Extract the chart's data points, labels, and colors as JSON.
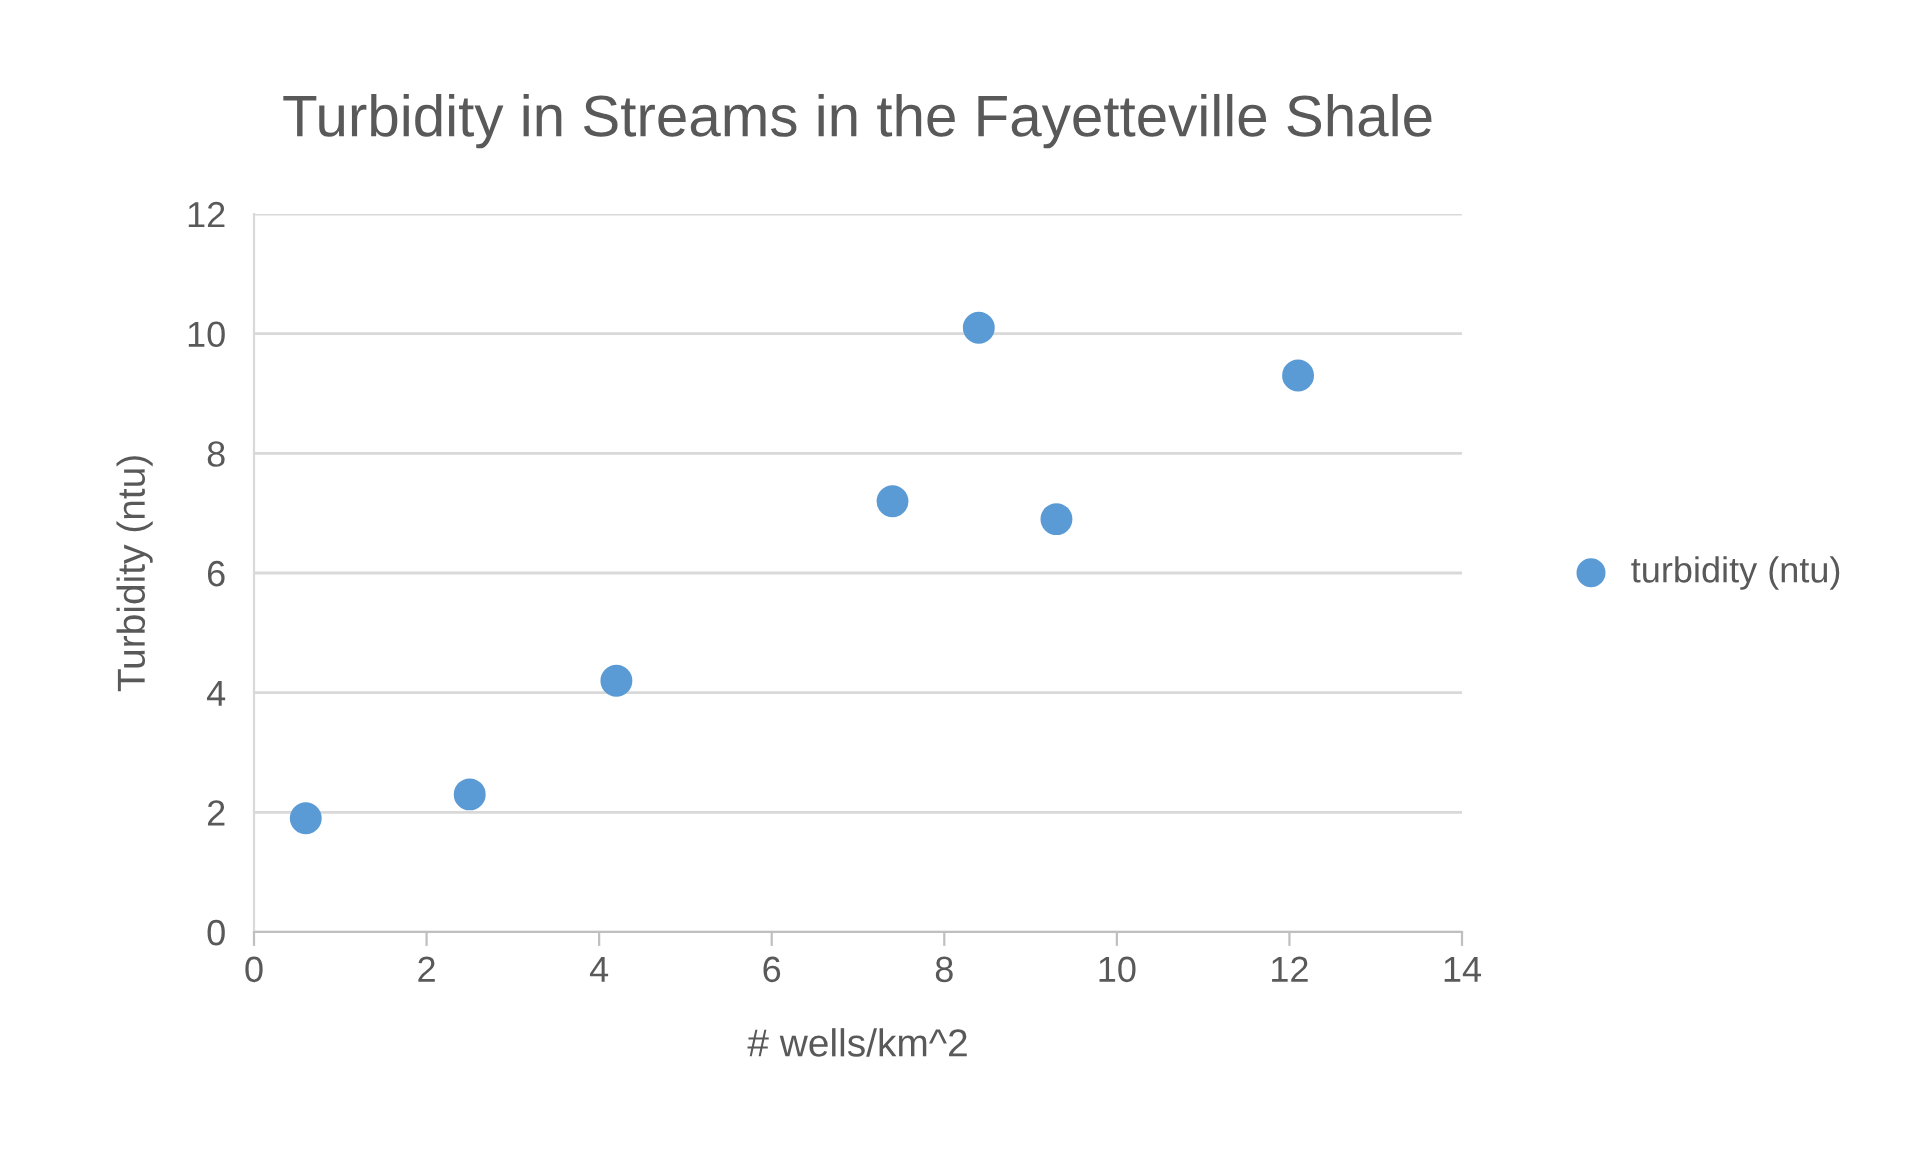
{
  "chart_data": {
    "type": "scatter",
    "title": "Turbidity in Streams in the Fayetteville Shale",
    "xlabel": "# wells/km^2",
    "ylabel": "Turbidity (ntu)",
    "series": [
      {
        "name": "turbidity (ntu)",
        "color": "#5b9bd5",
        "x": [
          0.6,
          2.5,
          4.2,
          7.4,
          8.4,
          9.3,
          12.1
        ],
        "values": [
          1.9,
          2.3,
          4.2,
          7.2,
          10.1,
          6.9,
          9.3
        ]
      }
    ],
    "xlim": [
      0,
      14
    ],
    "xticks": [
      0,
      2,
      4,
      6,
      8,
      10,
      12,
      14
    ],
    "ylim": [
      0,
      12
    ],
    "yticks": [
      0,
      2,
      4,
      6,
      8,
      10,
      12
    ],
    "grid": "y",
    "legend": "right",
    "marker": "circle"
  }
}
